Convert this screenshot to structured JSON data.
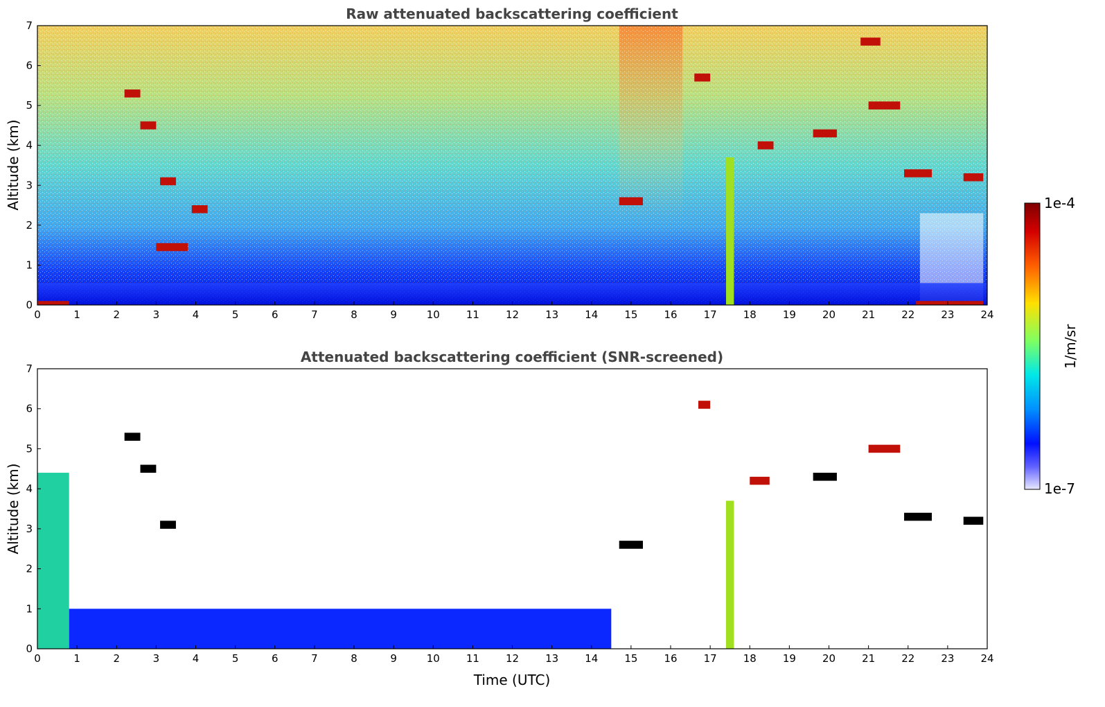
{
  "chart_data": [
    {
      "type": "heatmap",
      "title": "Raw attenuated backscattering coefficient",
      "xlabel": "",
      "ylabel": "Altitude (km)",
      "xlim": [
        0,
        24
      ],
      "ylim": [
        0,
        7
      ],
      "xticks": [
        "0",
        "1",
        "2",
        "3",
        "4",
        "5",
        "6",
        "7",
        "8",
        "9",
        "10",
        "11",
        "12",
        "13",
        "14",
        "15",
        "16",
        "17",
        "18",
        "19",
        "20",
        "21",
        "22",
        "23",
        "24"
      ],
      "yticks": [
        "0",
        "1",
        "2",
        "3",
        "4",
        "5",
        "6",
        "7"
      ],
      "features": [
        {
          "t0": 0.0,
          "t1": 0.8,
          "alt_top": 0.1,
          "level": "high"
        },
        {
          "t0": 2.2,
          "t1": 2.6,
          "alt_top": 5.4,
          "level": "high"
        },
        {
          "t0": 2.6,
          "t1": 3.0,
          "alt_top": 4.6,
          "level": "high"
        },
        {
          "t0": 3.1,
          "t1": 3.5,
          "alt_top": 3.2,
          "level": "high"
        },
        {
          "t0": 3.9,
          "t1": 4.3,
          "alt_top": 2.5,
          "level": "high"
        },
        {
          "t0": 3.0,
          "t1": 3.8,
          "alt_top": 1.55,
          "level": "high"
        },
        {
          "t0": 14.7,
          "t1": 15.3,
          "alt_top": 2.7,
          "level": "high"
        },
        {
          "t0": 16.6,
          "t1": 17.0,
          "alt_top": 5.8,
          "level": "high"
        },
        {
          "t0": 17.4,
          "t1": 17.6,
          "alt_top": 3.7,
          "level": "mid"
        },
        {
          "t0": 18.2,
          "t1": 18.6,
          "alt_top": 4.1,
          "level": "high"
        },
        {
          "t0": 19.6,
          "t1": 20.2,
          "alt_top": 4.4,
          "level": "high"
        },
        {
          "t0": 20.8,
          "t1": 21.3,
          "alt_top": 6.7,
          "level": "high"
        },
        {
          "t0": 21.0,
          "t1": 21.8,
          "alt_top": 5.1,
          "level": "high"
        },
        {
          "t0": 21.9,
          "t1": 22.6,
          "alt_top": 3.4,
          "level": "high"
        },
        {
          "t0": 23.4,
          "t1": 23.9,
          "alt_top": 3.3,
          "level": "high"
        },
        {
          "t0": 22.2,
          "t1": 23.9,
          "alt_top": 0.1,
          "level": "high"
        }
      ]
    },
    {
      "type": "heatmap",
      "title": "Attenuated backscattering coefficient (SNR-screened)",
      "xlabel": "Time (UTC)",
      "ylabel": "Altitude (km)",
      "xlim": [
        0,
        24
      ],
      "ylim": [
        0,
        7
      ],
      "xticks": [
        "0",
        "1",
        "2",
        "3",
        "4",
        "5",
        "6",
        "7",
        "8",
        "9",
        "10",
        "11",
        "12",
        "13",
        "14",
        "15",
        "16",
        "17",
        "18",
        "19",
        "20",
        "21",
        "22",
        "23",
        "24"
      ],
      "yticks": [
        "0",
        "1",
        "2",
        "3",
        "4",
        "5",
        "6",
        "7"
      ],
      "features": [
        {
          "t0": 0.0,
          "t1": 0.8,
          "alt_top": 4.4,
          "level": "mid"
        },
        {
          "t0": 0.8,
          "t1": 14.5,
          "alt_top": 1.0,
          "level": "low"
        },
        {
          "t0": 2.2,
          "t1": 2.6,
          "alt_top": 5.4,
          "level": "black"
        },
        {
          "t0": 2.6,
          "t1": 3.0,
          "alt_top": 4.6,
          "level": "black"
        },
        {
          "t0": 3.1,
          "t1": 3.5,
          "alt_top": 3.2,
          "level": "black"
        },
        {
          "t0": 14.7,
          "t1": 15.3,
          "alt_top": 2.7,
          "level": "black"
        },
        {
          "t0": 16.7,
          "t1": 17.0,
          "alt_top": 6.2,
          "level": "high"
        },
        {
          "t0": 17.4,
          "t1": 17.6,
          "alt_top": 3.7,
          "level": "mid"
        },
        {
          "t0": 18.0,
          "t1": 18.5,
          "alt_top": 4.3,
          "level": "high"
        },
        {
          "t0": 19.6,
          "t1": 20.2,
          "alt_top": 4.4,
          "level": "black"
        },
        {
          "t0": 21.0,
          "t1": 21.8,
          "alt_top": 5.1,
          "level": "high"
        },
        {
          "t0": 21.9,
          "t1": 22.6,
          "alt_top": 3.4,
          "level": "black"
        },
        {
          "t0": 23.4,
          "t1": 23.9,
          "alt_top": 3.3,
          "level": "black"
        }
      ]
    }
  ],
  "colorbar": {
    "label": "1/m/sr",
    "max_label": "1e-4",
    "min_label": "1e-7",
    "scale": "log",
    "colormap": "jet",
    "colors": [
      "#7f0000",
      "#ff0000",
      "#ff8000",
      "#ffff00",
      "#80ff80",
      "#00ffff",
      "#0080ff",
      "#0000ff",
      "#00008f"
    ]
  }
}
